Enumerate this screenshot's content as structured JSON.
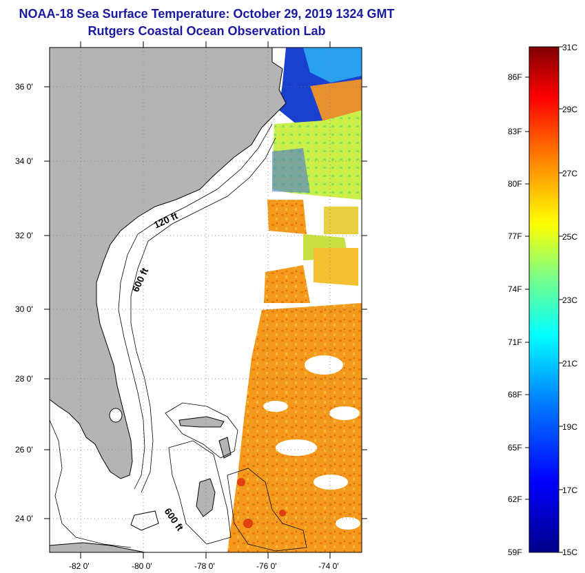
{
  "header": {
    "title_line1": "NOAA-18 Sea Surface Temperature:  October 29, 2019 1324 GMT",
    "title_line2": "Rutgers Coastal Ocean Observation Lab"
  },
  "map": {
    "lat_labels": [
      "36 0'",
      "34 0'",
      "32 0'",
      "30 0'",
      "28 0'",
      "26 0'",
      "24 0'"
    ],
    "lon_labels": [
      "-82 0'",
      "-80 0'",
      "-78 0'",
      "-76 0'",
      "-74 0'"
    ],
    "contour_labels": [
      "120 ft",
      "600 ft",
      "600 ft"
    ],
    "land_color": "#b4b4b4"
  },
  "colorbar": {
    "fahrenheit_labels": [
      "86F",
      "83F",
      "80F",
      "77F",
      "74F",
      "71F",
      "68F",
      "65F",
      "62F",
      "59F"
    ],
    "celsius_labels": [
      "31C",
      "29C",
      "27C",
      "25C",
      "23C",
      "21C",
      "19C",
      "17C",
      "15C"
    ],
    "stops": [
      "#00008a",
      "#0000ff",
      "#0080ff",
      "#00ffff",
      "#80ff80",
      "#ffff00",
      "#ff8000",
      "#ff0000",
      "#800000"
    ]
  }
}
